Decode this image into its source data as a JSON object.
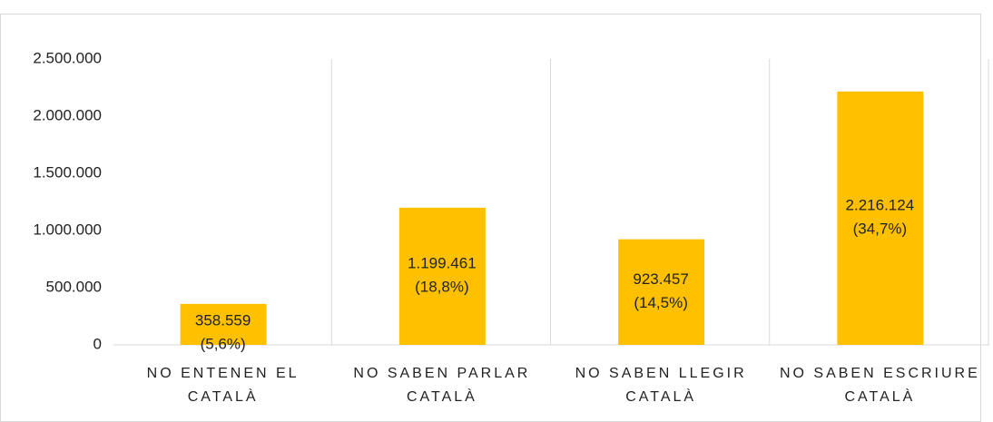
{
  "chart_data": {
    "type": "bar",
    "categories": [
      "NO ENTENEN EL CATALÀ",
      "NO SABEN PARLAR CATALÀ",
      "NO SABEN LLEGIR CATALÀ",
      "NO SABEN ESCRIURE CATALÀ"
    ],
    "values": [
      358559,
      1199461,
      923457,
      2216124
    ],
    "value_labels": [
      "358.559 (5,6%)",
      "1.199.461 (18,8%)",
      "923.457 (14,5%)",
      "2.216.124 (34,7%)"
    ],
    "color": "#ffc000",
    "ylim": [
      0,
      2500000
    ],
    "yticks": [
      0,
      {
        "value": 500000,
        "label": "500.000"
      },
      {
        "value": 1000000,
        "label": "1.000.000"
      },
      {
        "value": 1500000,
        "label": "1.500.000"
      },
      {
        "value": 2000000,
        "label": "2.000.000"
      },
      {
        "value": 2500000,
        "label": "2.500.000"
      }
    ]
  }
}
